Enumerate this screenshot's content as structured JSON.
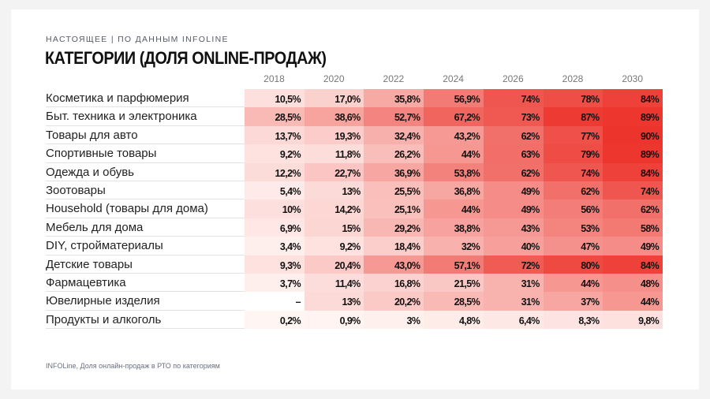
{
  "header": {
    "kicker": "НАСТОЯЩЕЕ | ПО ДАННЫМ INFOLINE",
    "title": "КАТЕГОРИИ (ДОЛЯ ONLINE-ПРОДАЖ)"
  },
  "table": {
    "columns": [
      "2018",
      "2020",
      "2022",
      "2024",
      "2026",
      "2028",
      "2030"
    ],
    "rows": [
      {
        "label": "Косметика и парфюмерия",
        "cells": [
          "10,5%",
          "17,0%",
          "35,8%",
          "56,9%",
          "74%",
          "78%",
          "84%"
        ]
      },
      {
        "label": "Быт. техника и электроника",
        "cells": [
          "28,5%",
          "38,6%",
          "52,7%",
          "67,2%",
          "73%",
          "87%",
          "89%"
        ]
      },
      {
        "label": "Товары для авто",
        "cells": [
          "13,7%",
          "19,3%",
          "32,4%",
          "43,2%",
          "62%",
          "77%",
          "90%"
        ]
      },
      {
        "label": "Спортивные товары",
        "cells": [
          "9,2%",
          "11,8%",
          "26,2%",
          "44%",
          "63%",
          "79%",
          "89%"
        ]
      },
      {
        "label": "Одежда и обувь",
        "cells": [
          "12,2%",
          "22,7%",
          "36,9%",
          "53,8%",
          "62%",
          "74%",
          "84%"
        ]
      },
      {
        "label": "Зоотовары",
        "cells": [
          "5,4%",
          "13%",
          "25,5%",
          "36,8%",
          "49%",
          "62%",
          "74%"
        ]
      },
      {
        "label": "Household (товары для дома)",
        "cells": [
          "10%",
          "14,2%",
          "25,1%",
          "44%",
          "49%",
          "56%",
          "62%"
        ]
      },
      {
        "label": "Мебель для дома",
        "cells": [
          "6,9%",
          "15%",
          "29,2%",
          "38,8%",
          "43%",
          "53%",
          "58%"
        ]
      },
      {
        "label": "DIY, стройматериалы",
        "cells": [
          "3,4%",
          "9,2%",
          "18,4%",
          "32%",
          "40%",
          "47%",
          "49%"
        ]
      },
      {
        "label": "Детские товары",
        "cells": [
          "9,3%",
          "20,4%",
          "43,0%",
          "57,1%",
          "72%",
          "80%",
          "84%"
        ]
      },
      {
        "label": "Фармацевтика",
        "cells": [
          "3,7%",
          "11,4%",
          "16,8%",
          "21,5%",
          "31%",
          "44%",
          "48%"
        ]
      },
      {
        "label": "Ювелирные изделия",
        "cells": [
          "–",
          "13%",
          "20,2%",
          "28,5%",
          "31%",
          "37%",
          "44%"
        ]
      },
      {
        "label": "Продукты и алкоголь",
        "cells": [
          "0,2%",
          "0,9%",
          "3%",
          "4,8%",
          "6,4%",
          "8,3%",
          "9,8%"
        ]
      }
    ]
  },
  "footer": "INFOLine, Доля онлайн-продаж в РТО по категориям"
}
